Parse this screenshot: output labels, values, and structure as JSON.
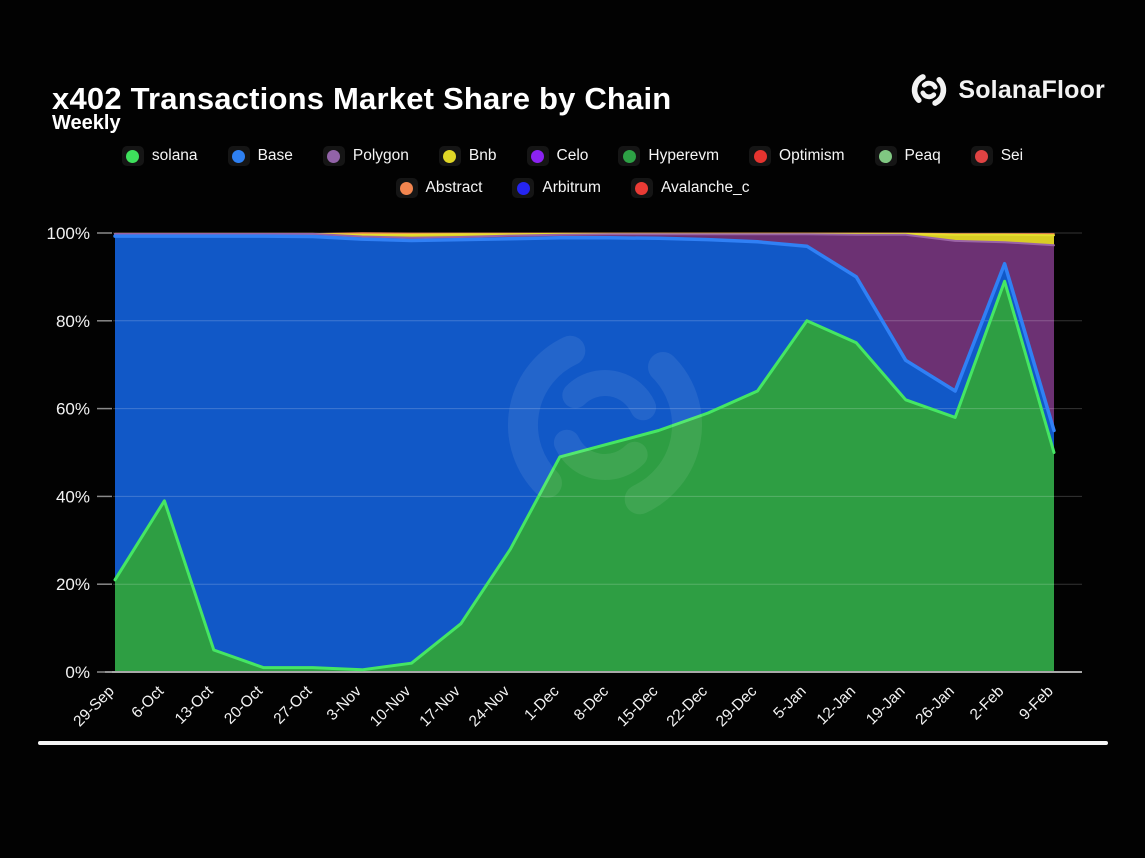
{
  "header": {
    "title": "x402 Transactions Market Share by Chain",
    "subtitle": "Weekly",
    "brand": "SolanaFloor"
  },
  "chart_data": {
    "type": "area",
    "stacked": true,
    "unit": "percent",
    "title": "x402 Transactions Market Share by Chain",
    "subtitle": "Weekly",
    "grid": true,
    "legend_position": "top",
    "ylim": [
      0,
      100
    ],
    "y_tick_labels": [
      "0%",
      "20%",
      "40%",
      "60%",
      "80%",
      "100%"
    ],
    "categories": [
      "29-Sep",
      "6-Oct",
      "13-Oct",
      "20-Oct",
      "27-Oct",
      "3-Nov",
      "10-Nov",
      "17-Nov",
      "24-Nov",
      "1-Dec",
      "8-Dec",
      "15-Dec",
      "22-Dec",
      "29-Dec",
      "5-Jan",
      "12-Jan",
      "19-Jan",
      "26-Jan",
      "2-Feb",
      "9-Feb"
    ],
    "series": [
      {
        "name": "solana",
        "color": "#3ee05c",
        "fill": "#2e9e43",
        "stroke": "#45e663",
        "stroke_width": 3,
        "values": [
          21,
          39,
          5,
          1,
          1,
          0.5,
          2,
          11,
          28,
          49,
          52,
          55,
          59,
          64,
          80,
          75,
          62,
          58,
          89,
          50
        ]
      },
      {
        "name": "Base",
        "color": "#2e80f2",
        "fill": "#1158c7",
        "stroke": "#3080f5",
        "stroke_width": 3.5,
        "values": [
          78.3,
          60.3,
          94.3,
          98.3,
          98.2,
          98.1,
          96.3,
          87.5,
          70.7,
          49.9,
          46.9,
          43.8,
          39.5,
          34,
          17,
          15,
          9,
          6,
          4,
          5
        ]
      },
      {
        "name": "Polygon",
        "color": "#9263a8",
        "fill": "#6c3173",
        "stroke": "#9a63a6",
        "stroke_width": 2,
        "values": [
          0.5,
          0.5,
          0.5,
          0.5,
          0.6,
          0.6,
          0.6,
          0.6,
          0.7,
          0.7,
          0.8,
          0.9,
          1.2,
          1.7,
          2.7,
          9.6,
          28.6,
          34.2,
          4.9,
          42.2
        ]
      },
      {
        "name": "Bnb",
        "color": "#e0d626",
        "fill": "#d9cd24",
        "stroke": "#e6df2e",
        "stroke_width": 2,
        "values": [
          0,
          0,
          0,
          0,
          0,
          0.4,
          0.7,
          0.6,
          0.3,
          0.2,
          0.1,
          0.1,
          0.1,
          0.1,
          0.1,
          0.2,
          0.2,
          1.4,
          1.7,
          2.3
        ]
      },
      {
        "name": "Celo",
        "color": "#8b22f2",
        "fill": "#8b22f2",
        "stroke": "#8b22f2",
        "stroke_width": 0,
        "values": [
          0,
          0,
          0,
          0,
          0,
          0,
          0,
          0,
          0,
          0,
          0,
          0,
          0,
          0,
          0,
          0,
          0,
          0,
          0,
          0
        ]
      },
      {
        "name": "Hyperevm",
        "color": "#2da145",
        "fill": "#2da145",
        "stroke": "#2da145",
        "stroke_width": 0,
        "values": [
          0,
          0,
          0,
          0,
          0,
          0,
          0,
          0,
          0,
          0,
          0,
          0,
          0,
          0,
          0,
          0,
          0,
          0,
          0,
          0
        ]
      },
      {
        "name": "Optimism",
        "color": "#e5342f",
        "fill": "#e5342f",
        "stroke": "#e5342f",
        "stroke_width": 0,
        "values": [
          0,
          0,
          0,
          0,
          0,
          0,
          0,
          0,
          0,
          0,
          0,
          0,
          0,
          0,
          0,
          0,
          0,
          0,
          0,
          0
        ]
      },
      {
        "name": "Peaq",
        "color": "#80c882",
        "fill": "#80c882",
        "stroke": "#80c882",
        "stroke_width": 0,
        "values": [
          0,
          0,
          0,
          0,
          0,
          0,
          0,
          0,
          0,
          0,
          0,
          0,
          0,
          0,
          0,
          0,
          0,
          0,
          0,
          0
        ]
      },
      {
        "name": "Sei",
        "color": "#e04343",
        "fill": "#e04343",
        "stroke": "#e04343",
        "stroke_width": 0,
        "values": [
          0,
          0,
          0,
          0,
          0,
          0,
          0,
          0,
          0,
          0,
          0,
          0,
          0,
          0,
          0,
          0,
          0,
          0,
          0,
          0
        ]
      },
      {
        "name": "Abstract",
        "color": "#f2854f",
        "fill": "#f2854f",
        "stroke": "#f2854f",
        "stroke_width": 1.5,
        "values": [
          0,
          0,
          0,
          0,
          0,
          0.4,
          0.3,
          0.2,
          0.2,
          0.1,
          0.1,
          0.1,
          0.1,
          0.1,
          0.1,
          0.1,
          0.1,
          0.2,
          0.2,
          0.3
        ]
      },
      {
        "name": "Arbitrum",
        "color": "#2525f0",
        "fill": "#2525f0",
        "stroke": "#2525f0",
        "stroke_width": 0,
        "values": [
          0,
          0,
          0,
          0,
          0,
          0,
          0,
          0,
          0,
          0,
          0,
          0,
          0,
          0,
          0,
          0,
          0,
          0,
          0,
          0
        ]
      },
      {
        "name": "Avalanche_c",
        "color": "#ea3b35",
        "fill": "#ea3b35",
        "stroke": "#ea3b35",
        "stroke_width": 0,
        "values": [
          0,
          0,
          0,
          0,
          0,
          0,
          0,
          0,
          0,
          0,
          0,
          0,
          0,
          0,
          0,
          0,
          0,
          0,
          0,
          0
        ]
      }
    ]
  }
}
